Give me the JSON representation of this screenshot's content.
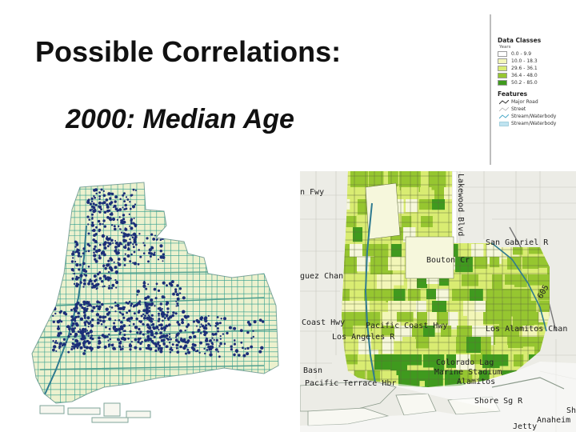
{
  "slide": {
    "title": "Possible Correlations:",
    "subtitle": "2000: Median Age"
  },
  "legend": {
    "heading": "Data Classes",
    "unit": "Years",
    "classes": [
      {
        "label": "0.0 - 9.9",
        "color": "#ffffff"
      },
      {
        "label": "10.0 - 18.3",
        "color": "#f3f6b8"
      },
      {
        "label": "29.6 - 36.1",
        "color": "#d9ec72"
      },
      {
        "label": "36.4 - 48.0",
        "color": "#96c630"
      },
      {
        "label": "50.2 - 85.0",
        "color": "#3f9a1e"
      }
    ],
    "features_heading": "Features",
    "features": [
      {
        "label": "Major Road",
        "icon": "major-road-icon"
      },
      {
        "label": "Street",
        "icon": "street-icon"
      },
      {
        "label": "Stream/Waterbody",
        "icon": "stream-icon"
      },
      {
        "label": "Stream/Waterbody",
        "icon": "waterbody-icon"
      }
    ]
  },
  "map_right": {
    "labels": {
      "fwy": "n Fwy",
      "lakewood": "Lakewood Blvd",
      "san_gabriel": "San Gabriel R",
      "bouton": "Bouton Cr",
      "dominguez": "guez Chan",
      "coast_hwy": "Coast Hwy",
      "pacific_coast": "Pacific Coast Hwy",
      "la_river": "Los Angeles R",
      "los_alamitos": "Los Alamitos Chan",
      "colorado_lag": "Colorado Lag",
      "marine_stadium": "Marine Stadium",
      "alamitos": "Alamitos",
      "basn": "Basn",
      "pacific_terrace": "Pacific Terrace Hbr",
      "shore_sg": "Shore Sg R",
      "sh": "Sh",
      "anaheim": "Anaheim",
      "jetty": "Jetty",
      "i605": "605"
    }
  },
  "colors": {
    "land_pale": "#ecf1ce",
    "street_teal": "#2f9d8d",
    "point_navy": "#1c2f78",
    "river_teal": "#2f7b90"
  }
}
